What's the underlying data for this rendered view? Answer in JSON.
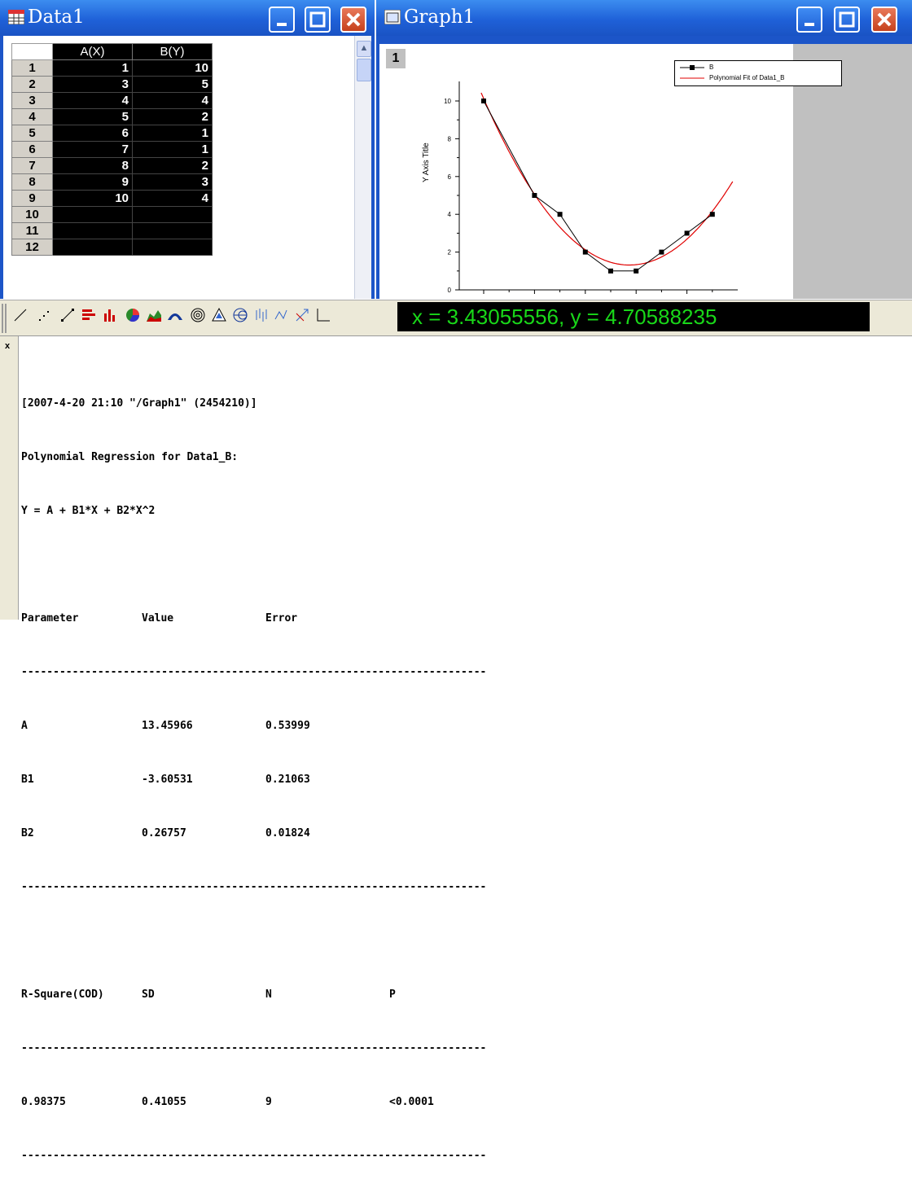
{
  "data_window": {
    "title": "Data1",
    "columns": [
      "A(X)",
      "B(Y)"
    ],
    "rows": [
      {
        "n": "1",
        "a": "1",
        "b": "10"
      },
      {
        "n": "2",
        "a": "3",
        "b": "5"
      },
      {
        "n": "3",
        "a": "4",
        "b": "4"
      },
      {
        "n": "4",
        "a": "5",
        "b": "2"
      },
      {
        "n": "5",
        "a": "6",
        "b": "1"
      },
      {
        "n": "6",
        "a": "7",
        "b": "1"
      },
      {
        "n": "7",
        "a": "8",
        "b": "2"
      },
      {
        "n": "8",
        "a": "9",
        "b": "3"
      },
      {
        "n": "9",
        "a": "10",
        "b": "4"
      },
      {
        "n": "10",
        "a": "",
        "b": ""
      },
      {
        "n": "11",
        "a": "",
        "b": ""
      },
      {
        "n": "12",
        "a": "",
        "b": ""
      }
    ]
  },
  "graph_window": {
    "title": "Graph1",
    "layer": "1",
    "y_axis_title": "Y Axis Title",
    "y_ticks": [
      "0",
      "2",
      "4",
      "6",
      "8",
      "10"
    ],
    "legend": [
      "B",
      "Polynomial Fit of Data1_B"
    ]
  },
  "chart_data": {
    "type": "scatter",
    "series": [
      {
        "name": "B",
        "x": [
          1,
          3,
          4,
          5,
          6,
          7,
          8,
          9,
          10
        ],
        "y": [
          10,
          5,
          4,
          2,
          1,
          1,
          2,
          3,
          4
        ],
        "color": "#000000"
      },
      {
        "name": "Polynomial Fit of Data1_B",
        "fit": {
          "A": 13.45966,
          "B1": -3.60531,
          "B2": 0.26757
        },
        "color": "#e00000"
      }
    ],
    "ylim": [
      0,
      10
    ],
    "ylabel": "Y Axis Title"
  },
  "toolbar": {
    "readout": "x = 3.43055556, y = 4.70588235"
  },
  "results": {
    "header": "[2007-4-20 21:10 \"/Graph1\" (2454210)]",
    "subtitle": "Polynomial Regression for Data1_B:",
    "equation": "Y = A + B1*X + B2*X^2",
    "param_headers": [
      "Parameter",
      "Value",
      "Error"
    ],
    "params": [
      {
        "name": "A",
        "value": "13.45966",
        "error": "0.53999"
      },
      {
        "name": "B1",
        "value": "-3.60531",
        "error": "0.21063"
      },
      {
        "name": "B2",
        "value": "0.26757",
        "error": "0.01824"
      }
    ],
    "stat_headers": [
      "R-Square(COD)",
      "SD",
      "N",
      "P"
    ],
    "stats": [
      "0.98375",
      "0.41055",
      "9",
      "<0.0001"
    ],
    "separator": "-------------------------------------------------------------------------"
  }
}
